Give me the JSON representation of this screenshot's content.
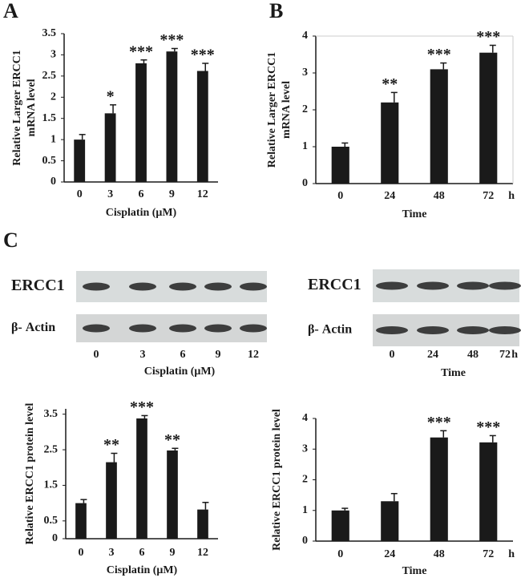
{
  "panel_labels": [
    "A",
    "B",
    "C"
  ],
  "chart_data": [
    {
      "type": "bar",
      "ylabel": [
        "Relative Larger ERCC1",
        "mRNA level"
      ],
      "xlabel": "Cisplatin (μM)",
      "categories": [
        "0",
        "3",
        "6",
        "9",
        "12"
      ],
      "values": [
        1,
        1.62,
        2.8,
        3.08,
        2.62
      ],
      "errors": [
        0.12,
        0.2,
        0.08,
        0.07,
        0.18
      ],
      "annotations": [
        null,
        "*",
        "***",
        "***",
        "***"
      ],
      "color": "#1a1a1a",
      "ylim": [
        0,
        3.5
      ],
      "yticks": [
        0,
        0.5,
        1,
        1.5,
        2,
        2.5,
        3,
        3.5
      ]
    },
    {
      "type": "bar",
      "ylabel": [
        "Relative Larger ERCC1",
        "mRNA level"
      ],
      "xlabel": "Time",
      "unit": "h",
      "categories": [
        "0",
        "24",
        "48",
        "72"
      ],
      "values": [
        1,
        2.2,
        3.1,
        3.55
      ],
      "errors": [
        0.1,
        0.27,
        0.17,
        0.2
      ],
      "annotations": [
        null,
        "**",
        "***",
        "***"
      ],
      "color": "#1a1a1a",
      "ylim": [
        0,
        4
      ],
      "yticks": [
        0,
        1,
        2,
        3,
        4
      ]
    },
    {
      "type": "bar",
      "ylabel": [
        "Relative ERCC1 protein level"
      ],
      "xlabel": "Cisplatin (μM)",
      "categories": [
        "0",
        "3",
        "6",
        "9",
        "12"
      ],
      "values": [
        1,
        2.15,
        3.38,
        2.48,
        0.82
      ],
      "errors": [
        0.1,
        0.25,
        0.08,
        0.06,
        0.2
      ],
      "annotations": [
        null,
        "**",
        "***",
        "**",
        null
      ],
      "color": "#1a1a1a",
      "ylim": [
        0,
        3.65
      ],
      "yticks": [
        0,
        0.5,
        1.5,
        2.5,
        3.5
      ]
    },
    {
      "type": "bar",
      "ylabel": [
        "Relative ERCC1 protein level"
      ],
      "xlabel": "Time",
      "unit": "h",
      "categories": [
        "0",
        "24",
        "48",
        "72"
      ],
      "values": [
        1,
        1.3,
        3.38,
        3.22
      ],
      "errors": [
        0.07,
        0.25,
        0.22,
        0.22
      ],
      "annotations": [
        null,
        null,
        "***",
        "***"
      ],
      "color": "#1a1a1a",
      "ylim": [
        0,
        4
      ],
      "yticks": [
        0,
        1,
        2,
        3,
        4
      ]
    }
  ],
  "blots": [
    {
      "labels": [
        "ERCC1",
        "β- Actin"
      ],
      "categories": [
        "0",
        "3",
        "6",
        "9",
        "12"
      ],
      "xlabel": "Cisplatin (μM)"
    },
    {
      "labels": [
        "ERCC1",
        "β- Actin"
      ],
      "categories": [
        "0",
        "24",
        "48",
        "72"
      ],
      "unit": "h",
      "xlabel": "Time"
    }
  ]
}
